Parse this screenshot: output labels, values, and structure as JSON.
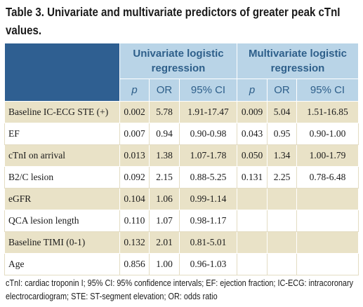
{
  "title": "Table 3. Univariate and multivariate predictors of greater peak cTnI values.",
  "groups": {
    "univariate": "Univariate logistic regression",
    "multivariate": "Multivariate logistic regression"
  },
  "subheaders": [
    "p",
    "OR",
    "95% CI",
    "p",
    "OR",
    "95% CI"
  ],
  "rows": [
    {
      "label": "Baseline IC-ECG STE (+)",
      "cells": [
        "0.002",
        "5.78",
        "1.91-17.47",
        "0.009",
        "5.04",
        "1.51-16.85"
      ]
    },
    {
      "label": "EF",
      "cells": [
        "0.007",
        "0.94",
        "0.90-0.98",
        "0.043",
        "0.95",
        "0.90-1.00"
      ]
    },
    {
      "label": "cTnI on arrival",
      "cells": [
        "0.013",
        "1.38",
        "1.07-1.78",
        "0.050",
        "1.34",
        "1.00-1.79"
      ]
    },
    {
      "label": "B2/C lesion",
      "cells": [
        "0.092",
        "2.15",
        "0.88-5.25",
        "0.131",
        "2.25",
        "0.78-6.48"
      ]
    },
    {
      "label": "eGFR",
      "cells": [
        "0.104",
        "1.06",
        "0.99-1.14",
        "",
        "",
        ""
      ]
    },
    {
      "label": "QCA lesion length",
      "cells": [
        "0.110",
        "1.07",
        "0.98-1.17",
        "",
        "",
        ""
      ]
    },
    {
      "label": "Baseline TIMI (0-1)",
      "cells": [
        "0.132",
        "2.01",
        "0.81-5.01",
        "",
        "",
        ""
      ]
    },
    {
      "label": "Age",
      "cells": [
        "0.856",
        "1.00",
        "0.96-1.03",
        "",
        "",
        ""
      ]
    }
  ],
  "footnote": "cTnI: cardiac troponin I; 95% CI: 95% confidence intervals; EF: ejection fraction; IC-ECG: intracoronary electrocardiogram; STE: ST-segment elevation; OR: odds ratio",
  "colors": {
    "header_dark": "#2f5f91",
    "header_light": "#b9d4e7",
    "header_text": "#2e5f8a",
    "row_shaded": "#e9e2c7",
    "row_plain": "#ffffff"
  }
}
